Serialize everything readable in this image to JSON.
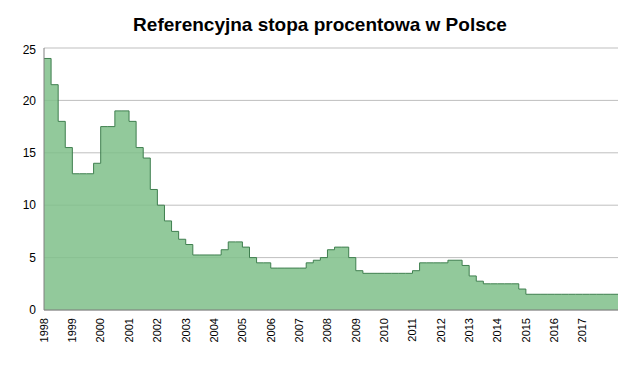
{
  "chart_data": {
    "type": "area",
    "title": "Referencyjna stopa procentowa w Polsce",
    "line_style": "step",
    "color": "#7fbf8a",
    "grid": true,
    "ylim": [
      0,
      25
    ],
    "yticks": [
      0,
      5,
      10,
      15,
      20,
      25
    ],
    "categories": [
      "1998",
      null,
      null,
      null,
      "1999",
      null,
      null,
      null,
      "2000",
      null,
      null,
      null,
      "2001",
      null,
      null,
      null,
      "2002",
      null,
      null,
      null,
      "2003",
      null,
      null,
      null,
      "2004",
      null,
      null,
      null,
      "2005",
      null,
      null,
      null,
      "2006",
      null,
      null,
      null,
      "2007",
      null,
      null,
      null,
      "2008",
      null,
      null,
      null,
      "2009",
      null,
      null,
      null,
      "2010",
      null,
      null,
      null,
      "2011",
      null,
      null,
      null,
      "2012",
      null,
      null,
      null,
      "2013",
      null,
      null,
      null,
      "2014",
      null,
      null,
      null,
      "2015",
      null,
      null,
      null,
      "2016",
      null,
      null,
      null,
      "2017",
      null,
      null,
      null,
      null,
      null
    ],
    "values": [
      24,
      21.5,
      18,
      15.5,
      13,
      13,
      13,
      14,
      17.5,
      17.5,
      19,
      19,
      18,
      15.5,
      14.5,
      11.5,
      10,
      8.5,
      7.5,
      6.75,
      6.25,
      5.25,
      5.25,
      5.25,
      5.25,
      5.75,
      6.5,
      6.5,
      6,
      5,
      4.5,
      4.5,
      4,
      4,
      4,
      4,
      4,
      4.5,
      4.75,
      5,
      5.75,
      6,
      6,
      5,
      3.75,
      3.5,
      3.5,
      3.5,
      3.5,
      3.5,
      3.5,
      3.5,
      3.75,
      4.5,
      4.5,
      4.5,
      4.5,
      4.75,
      4.75,
      4.25,
      3.25,
      2.75,
      2.5,
      2.5,
      2.5,
      2.5,
      2.5,
      2,
      1.5,
      1.5,
      1.5,
      1.5,
      1.5,
      1.5,
      1.5,
      1.5,
      1.5,
      1.5,
      1.5,
      1.5,
      1.5,
      1.5
    ]
  }
}
